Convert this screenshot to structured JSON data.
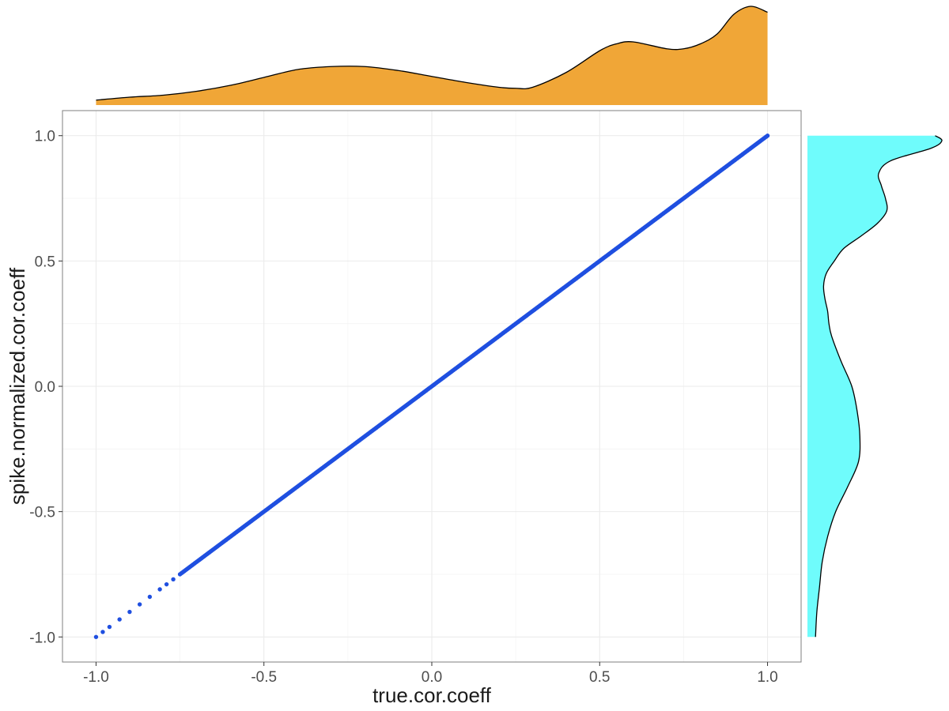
{
  "chart_data": [
    {
      "type": "scatter",
      "title": "",
      "xlabel": "true.cor.coeff",
      "ylabel": "spike.normalized.cor.coeff",
      "xlim": [
        -1.1,
        1.1
      ],
      "ylim": [
        -1.1,
        1.1
      ],
      "x_ticks": [
        -1.0,
        -0.5,
        0.0,
        0.5,
        1.0
      ],
      "y_ticks": [
        -1.0,
        -0.5,
        0.0,
        0.5,
        1.0
      ],
      "x_tick_labels": [
        "-1.0",
        "-0.5",
        "0.0",
        "0.5",
        "1.0"
      ],
      "y_tick_labels": [
        "-1.0",
        "-0.5",
        "0.0",
        "0.5",
        "1.0"
      ],
      "grid": true,
      "point_color": "#1f4fe0",
      "series": [
        {
          "x_range": [
            -1.0,
            1.0
          ],
          "relation": "y = x",
          "point_count_estimate": 2000,
          "isolated_points": [
            [
              -1.0,
              -1.0
            ],
            [
              -0.98,
              -0.98
            ],
            [
              -0.96,
              -0.96
            ],
            [
              -0.93,
              -0.93
            ],
            [
              -0.9,
              -0.9
            ],
            [
              -0.87,
              -0.87
            ],
            [
              -0.84,
              -0.84
            ],
            [
              -0.81,
              -0.81
            ],
            [
              -0.79,
              -0.79
            ],
            [
              -0.77,
              -0.77
            ]
          ]
        }
      ]
    },
    {
      "type": "area",
      "role": "top marginal density of true.cor.coeff",
      "fill": "#f0a637",
      "x": [
        -1.0,
        -0.9,
        -0.8,
        -0.7,
        -0.6,
        -0.5,
        -0.4,
        -0.3,
        -0.2,
        -0.1,
        0.0,
        0.1,
        0.2,
        0.25,
        0.3,
        0.4,
        0.5,
        0.55,
        0.6,
        0.7,
        0.75,
        0.8,
        0.85,
        0.9,
        0.95,
        1.0
      ],
      "density": [
        0.05,
        0.08,
        0.1,
        0.14,
        0.2,
        0.28,
        0.36,
        0.39,
        0.39,
        0.35,
        0.29,
        0.23,
        0.18,
        0.17,
        0.18,
        0.33,
        0.55,
        0.62,
        0.64,
        0.57,
        0.57,
        0.62,
        0.72,
        0.92,
        1.0,
        0.94
      ]
    },
    {
      "type": "area",
      "role": "right marginal density of spike.normalized.cor.coeff",
      "fill": "#6ffcfc",
      "y": [
        1.0,
        0.98,
        0.95,
        0.9,
        0.85,
        0.8,
        0.75,
        0.7,
        0.65,
        0.6,
        0.55,
        0.5,
        0.45,
        0.4,
        0.35,
        0.3,
        0.25,
        0.2,
        0.1,
        0.0,
        -0.1,
        -0.2,
        -0.3,
        -0.4,
        -0.5,
        -0.6,
        -0.7,
        -0.8,
        -0.9,
        -1.0
      ],
      "density": [
        0.95,
        1.0,
        0.92,
        0.62,
        0.53,
        0.55,
        0.58,
        0.59,
        0.52,
        0.4,
        0.27,
        0.2,
        0.14,
        0.12,
        0.13,
        0.15,
        0.16,
        0.18,
        0.25,
        0.33,
        0.37,
        0.39,
        0.38,
        0.3,
        0.21,
        0.15,
        0.11,
        0.09,
        0.07,
        0.06
      ]
    }
  ]
}
